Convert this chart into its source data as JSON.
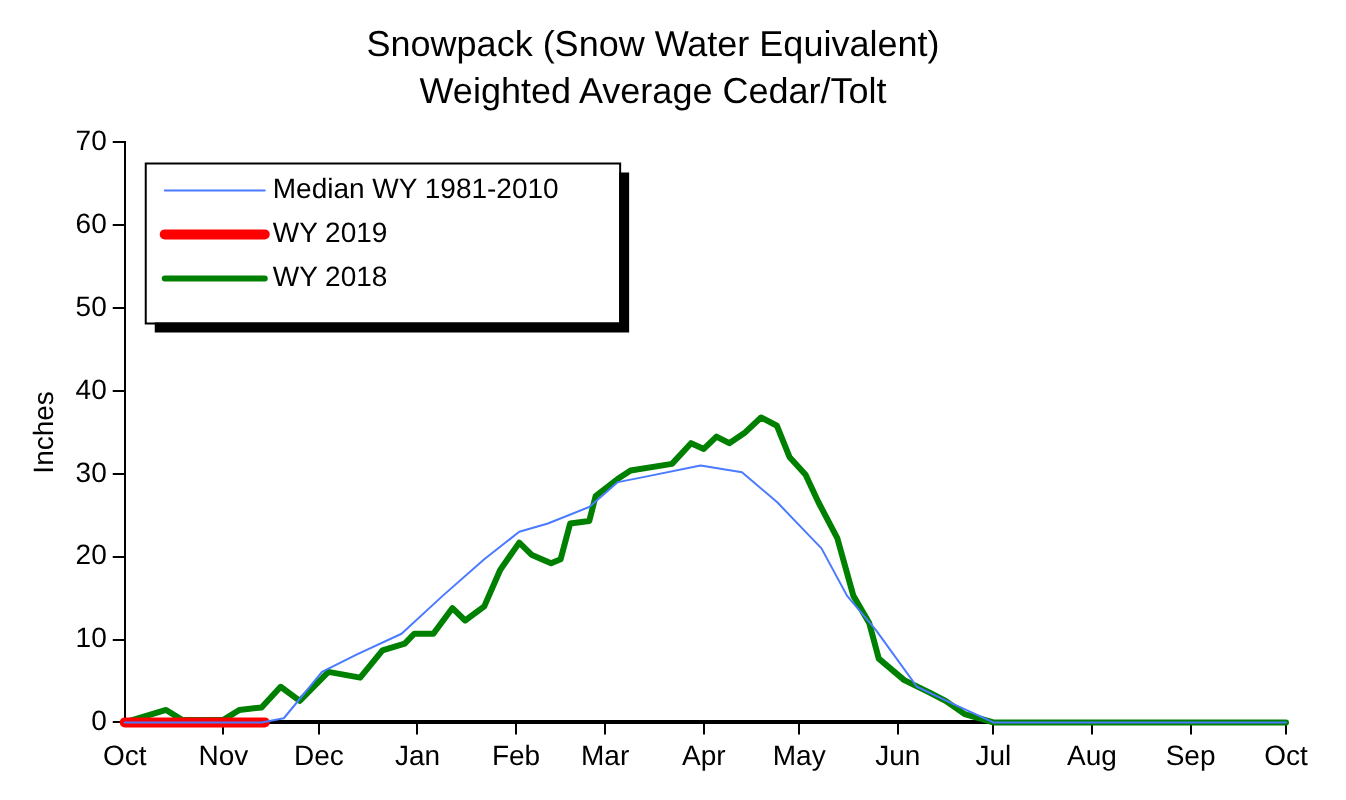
{
  "chart_data": {
    "type": "line",
    "title": "Snowpack (Snow Water Equivalent)",
    "subtitle": "Weighted Average Cedar/Tolt",
    "ylabel": "Inches",
    "xlim": [
      "2017-10-01",
      "2018-10-01"
    ],
    "xticks": [
      {
        "value": "2017-10-01",
        "label": "Oct"
      },
      {
        "value": "2017-11-01",
        "label": "Nov"
      },
      {
        "value": "2017-12-01",
        "label": "Dec"
      },
      {
        "value": "2018-01-01",
        "label": "Jan"
      },
      {
        "value": "2018-02-01",
        "label": "Feb"
      },
      {
        "value": "2018-03-01",
        "label": "Mar"
      },
      {
        "value": "2018-04-01",
        "label": "Apr"
      },
      {
        "value": "2018-05-01",
        "label": "May"
      },
      {
        "value": "2018-06-01",
        "label": "Jun"
      },
      {
        "value": "2018-07-01",
        "label": "Jul"
      },
      {
        "value": "2018-08-01",
        "label": "Aug"
      },
      {
        "value": "2018-09-01",
        "label": "Sep"
      },
      {
        "value": "2018-10-01",
        "label": "Oct"
      }
    ],
    "ylim": [
      0,
      70
    ],
    "yticks": [
      0,
      10,
      20,
      30,
      40,
      50,
      60,
      70
    ],
    "grid": false,
    "legend": "top left",
    "marker": "none",
    "series": [
      {
        "name": "Median WY 1981-2010",
        "color": "#4a7aff",
        "x": [
          "2017-10-01",
          "2017-11-13",
          "2017-11-20",
          "2017-12-02",
          "2017-12-13",
          "2017-12-27",
          "2018-01-09",
          "2018-01-22",
          "2018-02-02",
          "2018-02-11",
          "2018-02-24",
          "2018-03-05",
          "2018-03-13",
          "2018-03-31",
          "2018-04-13",
          "2018-04-24",
          "2018-05-03",
          "2018-05-08",
          "2018-05-16",
          "2018-05-25",
          "2018-06-07",
          "2018-06-18",
          "2018-07-01",
          "2018-10-01"
        ],
        "values": [
          0,
          0,
          0.5,
          6.1,
          8.2,
          10.7,
          15.3,
          19.7,
          23,
          24,
          26,
          29,
          29.6,
          31,
          30.2,
          26.6,
          23,
          21,
          15.3,
          11.2,
          4.3,
          2.3,
          0,
          0
        ]
      },
      {
        "name": "WY 2019",
        "color": "#ff0000",
        "x": [
          "2017-10-01",
          "2017-11-14"
        ],
        "values": [
          0,
          0
        ]
      },
      {
        "name": "WY 2018",
        "color": "#008000",
        "x": [
          "2017-10-01",
          "2017-10-14",
          "2017-10-19",
          "2017-11-01",
          "2017-11-06",
          "2017-11-13",
          "2017-11-19",
          "2017-11-25",
          "2017-12-04",
          "2017-12-14",
          "2017-12-21",
          "2017-12-28",
          "2017-12-31",
          "2018-01-06",
          "2018-01-12",
          "2018-01-16",
          "2018-01-22",
          "2018-01-27",
          "2018-02-02",
          "2018-02-06",
          "2018-02-12",
          "2018-02-15",
          "2018-02-18",
          "2018-02-24",
          "2018-02-26",
          "2018-03-05",
          "2018-03-09",
          "2018-03-22",
          "2018-03-28",
          "2018-04-01",
          "2018-04-05",
          "2018-04-09",
          "2018-04-14",
          "2018-04-19",
          "2018-04-24",
          "2018-04-28",
          "2018-05-03",
          "2018-05-07",
          "2018-05-13",
          "2018-05-18",
          "2018-05-23",
          "2018-05-26",
          "2018-06-03",
          "2018-06-11",
          "2018-06-16",
          "2018-06-22",
          "2018-07-01",
          "2018-10-01"
        ],
        "values": [
          0,
          1.5,
          0.3,
          0.3,
          1.5,
          1.8,
          4.3,
          2.6,
          6.1,
          5.4,
          8.7,
          9.5,
          10.7,
          10.7,
          13.8,
          12.3,
          14,
          18.4,
          21.7,
          20.2,
          19.2,
          19.7,
          24,
          24.3,
          27.3,
          29.4,
          30.4,
          31.2,
          33.7,
          33,
          34.5,
          33.7,
          35,
          36.8,
          35.8,
          32,
          29.9,
          26.6,
          22.2,
          15.3,
          12,
          7.7,
          5.1,
          3.6,
          2.6,
          1,
          0,
          0
        ]
      }
    ]
  }
}
